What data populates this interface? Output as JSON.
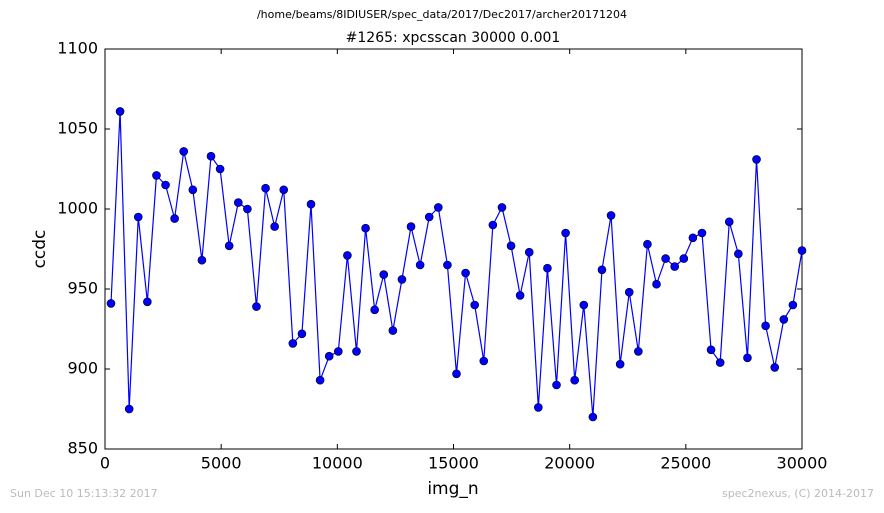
{
  "chart_data": {
    "type": "line",
    "suptitle": "/home/beams/8IDIUSER/spec_data/2017/Dec2017/archer20171204",
    "title": "#1265: xpcsscan 30000 0.001",
    "x_label": "img_n",
    "y_label": "ccdc",
    "footer_left": "Sun Dec 10 15:13:32 2017",
    "footer_right": "spec2nexus, (C) 2014-2017",
    "x": [
      258,
      649,
      1041,
      1432,
      1823,
      2215,
      2606,
      2997,
      3389,
      3780,
      4171,
      4563,
      4954,
      5345,
      5737,
      6128,
      6519,
      6911,
      7302,
      7693,
      8085,
      8476,
      8867,
      9259,
      9650,
      10042,
      10433,
      10824,
      11216,
      11607,
      11998,
      12390,
      12781,
      13172,
      13564,
      13955,
      14346,
      14738,
      15129,
      15520,
      15912,
      16303,
      16694,
      17086,
      17477,
      17868,
      18260,
      18651,
      19042,
      19434,
      19825,
      20216,
      20608,
      20999,
      21390,
      21782,
      22173,
      22564,
      22956,
      23347,
      23738,
      24130,
      24521,
      24912,
      25304,
      25695,
      26086,
      26478,
      26869,
      27260,
      27652,
      28043,
      28434,
      28826,
      29217,
      29608,
      30000
    ],
    "series": [
      {
        "color": "#0000ff",
        "values": [
          941,
          1061,
          875,
          995,
          942,
          1021,
          1015,
          994,
          1036,
          1012,
          968,
          1033,
          1025,
          977,
          1004,
          1000,
          939,
          1013,
          989,
          1012,
          916,
          922,
          1003,
          893,
          908,
          911,
          971,
          911,
          988,
          937,
          959,
          924,
          956,
          989,
          965,
          995,
          1001,
          965,
          897,
          960,
          940,
          905,
          990,
          1001,
          977,
          946,
          973,
          876,
          963,
          890,
          985,
          893,
          940,
          870,
          962,
          996,
          903,
          948,
          911,
          978,
          953,
          969,
          964,
          969,
          982,
          985,
          912,
          904,
          992,
          972,
          907,
          1031,
          927,
          901,
          931,
          940,
          974
        ]
      }
    ],
    "xlim": [
      0,
      30000
    ],
    "xticks": [
      0,
      5000,
      10000,
      15000,
      20000,
      25000,
      30000
    ],
    "ylim": [
      850,
      1100
    ],
    "yticks": [
      850,
      900,
      950,
      1000,
      1050,
      1100
    ]
  }
}
